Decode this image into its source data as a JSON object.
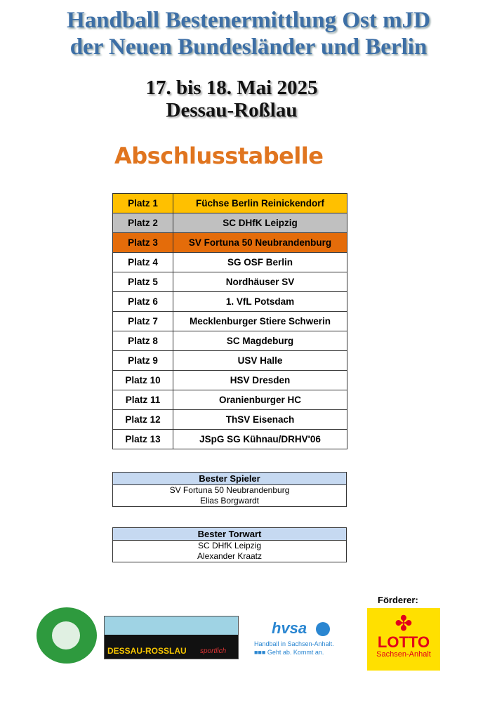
{
  "header": {
    "title_line1": "Handball Bestenermittlung Ost mJD",
    "title_line2": "der Neuen Bundesländer und Berlin",
    "date": "17. bis 18. Mai 2025",
    "location": "Dessau-Roßlau",
    "section_title": "Abschlusstabelle"
  },
  "standings": [
    {
      "place": "Platz 1",
      "team": "Füchse Berlin Reinickendorf",
      "color": "#ffc000"
    },
    {
      "place": "Platz 2",
      "team": "SC DHfK Leipzig",
      "color": "#c0c0c0"
    },
    {
      "place": "Platz 3",
      "team": "SV Fortuna 50 Neubrandenburg",
      "color": "#e46c0a"
    },
    {
      "place": "Platz 4",
      "team": "SG OSF Berlin"
    },
    {
      "place": "Platz 5",
      "team": "Nordhäuser SV"
    },
    {
      "place": "Platz 6",
      "team": "1. VfL Potsdam"
    },
    {
      "place": "Platz 7",
      "team": "Mecklenburger Stiere Schwerin"
    },
    {
      "place": "Platz 8",
      "team": "SC Magdeburg"
    },
    {
      "place": "Platz 9",
      "team": "USV Halle"
    },
    {
      "place": "Platz 10",
      "team": "HSV Dresden"
    },
    {
      "place": "Platz 11",
      "team": "Oranienburger HC"
    },
    {
      "place": "Platz 12",
      "team": "ThSV Eisenach"
    },
    {
      "place": "Platz 13",
      "team": "JSpG SG Kühnau/DRHV'06"
    }
  ],
  "best_player": {
    "heading": "Bester Spieler",
    "club": "SV Fortuna 50 Neubrandenburg",
    "name": "Elias Borgwardt"
  },
  "best_goalkeeper": {
    "heading": "Bester Torwart",
    "club": "SC DHfK Leipzig",
    "name": "Alexander Kraatz"
  },
  "sponsors": {
    "label": "Förderer:",
    "logos": {
      "kuehnau": "SPORTGEMEINSCHAFT KÜHNAU e.V.",
      "dessau": "DESSAU-ROSSLAU",
      "dessau_suffix": "sportlich",
      "hvsa": "hvsa",
      "hvsa_line1": "Handball in Sachsen-Anhalt.",
      "hvsa_line2": "Geht ab. Kommt an.",
      "lotto": "LOTTO",
      "lotto_sub": "Sachsen-Anhalt"
    }
  }
}
